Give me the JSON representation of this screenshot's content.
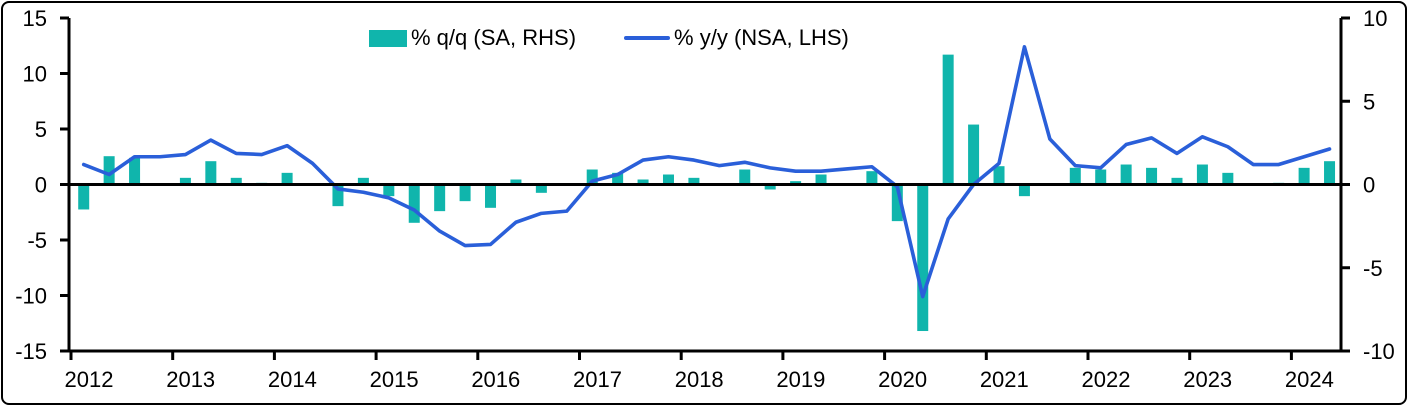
{
  "legend": {
    "bar_label": "% q/q (SA, RHS)",
    "line_label": "% y/y (NSA, LHS)"
  },
  "colors": {
    "bar": "#10b5ac",
    "line": "#2a5fd9",
    "axis": "#000000",
    "text": "#000000",
    "background": "#ffffff"
  },
  "chart_data": {
    "type": "combo-bar-line",
    "title": "",
    "grid": "off",
    "legend_position": "top-center",
    "x_year_ticks": [
      "2012",
      "2013",
      "2014",
      "2015",
      "2016",
      "2017",
      "2018",
      "2019",
      "2020",
      "2021",
      "2022",
      "2023",
      "2024"
    ],
    "left_axis": {
      "min": -15,
      "max": 15,
      "tick_labels": [
        "15",
        "10",
        "5",
        "0",
        "-5",
        "-10",
        "-15"
      ],
      "tick_values": [
        15,
        10,
        5,
        0,
        -5,
        -10,
        -15
      ],
      "side": "left"
    },
    "right_axis": {
      "min": -10,
      "max": 10,
      "tick_labels": [
        "10",
        "5",
        "0",
        "-5",
        "-10"
      ],
      "tick_values": [
        10,
        5,
        0,
        -5,
        -10
      ],
      "side": "right"
    },
    "categories": [
      "2012 Q1",
      "2012 Q2",
      "2012 Q3",
      "2012 Q4",
      "2013 Q1",
      "2013 Q2",
      "2013 Q3",
      "2013 Q4",
      "2014 Q1",
      "2014 Q2",
      "2014 Q3",
      "2014 Q4",
      "2015 Q1",
      "2015 Q2",
      "2015 Q3",
      "2015 Q4",
      "2016 Q1",
      "2016 Q2",
      "2016 Q3",
      "2016 Q4",
      "2017 Q1",
      "2017 Q2",
      "2017 Q3",
      "2017 Q4",
      "2018 Q1",
      "2018 Q2",
      "2018 Q3",
      "2018 Q4",
      "2019 Q1",
      "2019 Q2",
      "2019 Q3",
      "2019 Q4",
      "2020 Q1",
      "2020 Q2",
      "2020 Q3",
      "2020 Q4",
      "2021 Q1",
      "2021 Q2",
      "2021 Q3",
      "2021 Q4",
      "2022 Q1",
      "2022 Q2",
      "2022 Q3",
      "2022 Q4",
      "2023 Q1",
      "2023 Q2",
      "2023 Q3",
      "2023 Q4",
      "2024 Q1",
      "2024 Q2"
    ],
    "series": [
      {
        "name": "% q/q (SA, RHS)",
        "type": "bar",
        "axis": "right",
        "values": [
          -1.5,
          1.7,
          1.6,
          0.0,
          0.4,
          1.4,
          0.4,
          0.1,
          0.7,
          0.0,
          -1.3,
          0.4,
          -0.7,
          -2.3,
          -1.6,
          -1.0,
          -1.4,
          0.3,
          -0.5,
          0.0,
          0.9,
          0.7,
          0.3,
          0.6,
          0.4,
          0.0,
          0.9,
          -0.3,
          0.2,
          0.6,
          0.0,
          0.8,
          -2.2,
          -8.8,
          7.8,
          3.6,
          1.1,
          -0.7,
          0.0,
          1.0,
          0.9,
          1.2,
          1.0,
          0.4,
          1.2,
          0.7,
          0.0,
          0.1,
          1.0,
          1.4
        ]
      },
      {
        "name": "% y/y (NSA, LHS)",
        "type": "line",
        "axis": "left",
        "values": [
          1.8,
          0.9,
          2.5,
          2.5,
          2.7,
          4.0,
          2.8,
          2.7,
          3.5,
          1.9,
          -0.4,
          -0.7,
          -1.2,
          -2.3,
          -4.2,
          -5.5,
          -5.4,
          -3.4,
          -2.6,
          -2.4,
          0.3,
          0.9,
          2.2,
          2.5,
          2.2,
          1.7,
          2.0,
          1.5,
          1.2,
          1.2,
          1.4,
          1.6,
          -0.2,
          -10.1,
          -3.1,
          0.0,
          1.9,
          12.4,
          4.1,
          1.7,
          1.5,
          3.6,
          4.2,
          2.8,
          4.3,
          3.4,
          1.8,
          1.8,
          2.5,
          3.2
        ]
      }
    ]
  }
}
